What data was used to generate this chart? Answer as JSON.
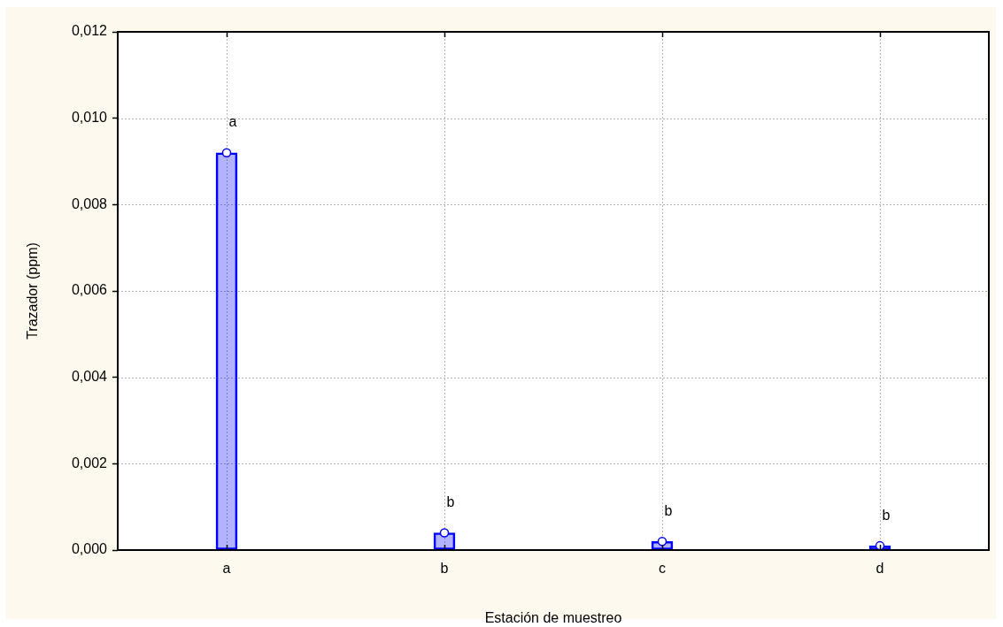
{
  "chart_data": {
    "type": "bar",
    "xlabel": "Estación de muestreo",
    "ylabel": "Trazador (ppm)",
    "categories": [
      "a",
      "b",
      "c",
      "d"
    ],
    "series": [
      {
        "color": "#0000ff",
        "values": [
          0.0092,
          0.0004,
          0.0002,
          0.0001
        ]
      },
      {
        "type": "scatter",
        "color": "#0000ff",
        "marker": "circle",
        "x": [
          "a",
          "b",
          "c",
          "d"
        ],
        "values": [
          0.0092,
          0.0004,
          0.0002,
          0.0001
        ]
      }
    ],
    "ylim": [
      0,
      0.012
    ],
    "yticks": [
      {
        "value": 0,
        "label": "0,000"
      },
      {
        "value": 0.002,
        "label": "0,002"
      },
      {
        "value": 0.004,
        "label": "0,004"
      },
      {
        "value": 0.006,
        "label": "0,006"
      },
      {
        "value": 0.008,
        "label": "0,008"
      },
      {
        "value": 0.01,
        "label": "0,010"
      },
      {
        "value": 0.012,
        "label": "0,012"
      }
    ],
    "grid": true,
    "annotations": [
      "a",
      "b",
      "b",
      "b"
    ]
  }
}
